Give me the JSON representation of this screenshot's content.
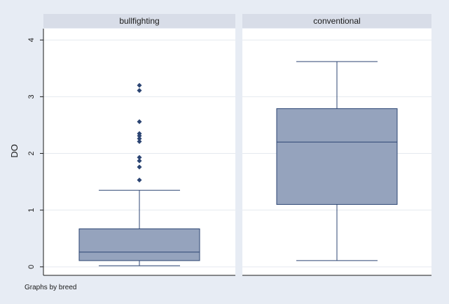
{
  "chart_data": {
    "type": "box",
    "ylabel": "DO",
    "ylim": [
      -0.15,
      4.2
    ],
    "yticks": [
      0,
      1,
      2,
      3,
      4
    ],
    "grid": true,
    "note": "Graphs by breed",
    "colors": {
      "box": "#95a3bd",
      "outline": "#2c4573",
      "panel": "#ffffff",
      "strip": "#d8dde8",
      "background": "#e7ecf4"
    },
    "panels": [
      {
        "label": "bullfighting",
        "box": {
          "whisker_low": 0.02,
          "q1": 0.11,
          "median": 0.26,
          "q3": 0.67,
          "whisker_high": 1.35
        },
        "outliers": [
          1.53,
          1.76,
          1.87,
          1.93,
          2.21,
          2.26,
          2.31,
          2.35,
          2.56,
          3.11,
          3.2
        ]
      },
      {
        "label": "conventional",
        "box": {
          "whisker_low": 0.11,
          "q1": 1.1,
          "median": 2.2,
          "q3": 2.79,
          "whisker_high": 3.62
        },
        "outliers": []
      }
    ]
  }
}
